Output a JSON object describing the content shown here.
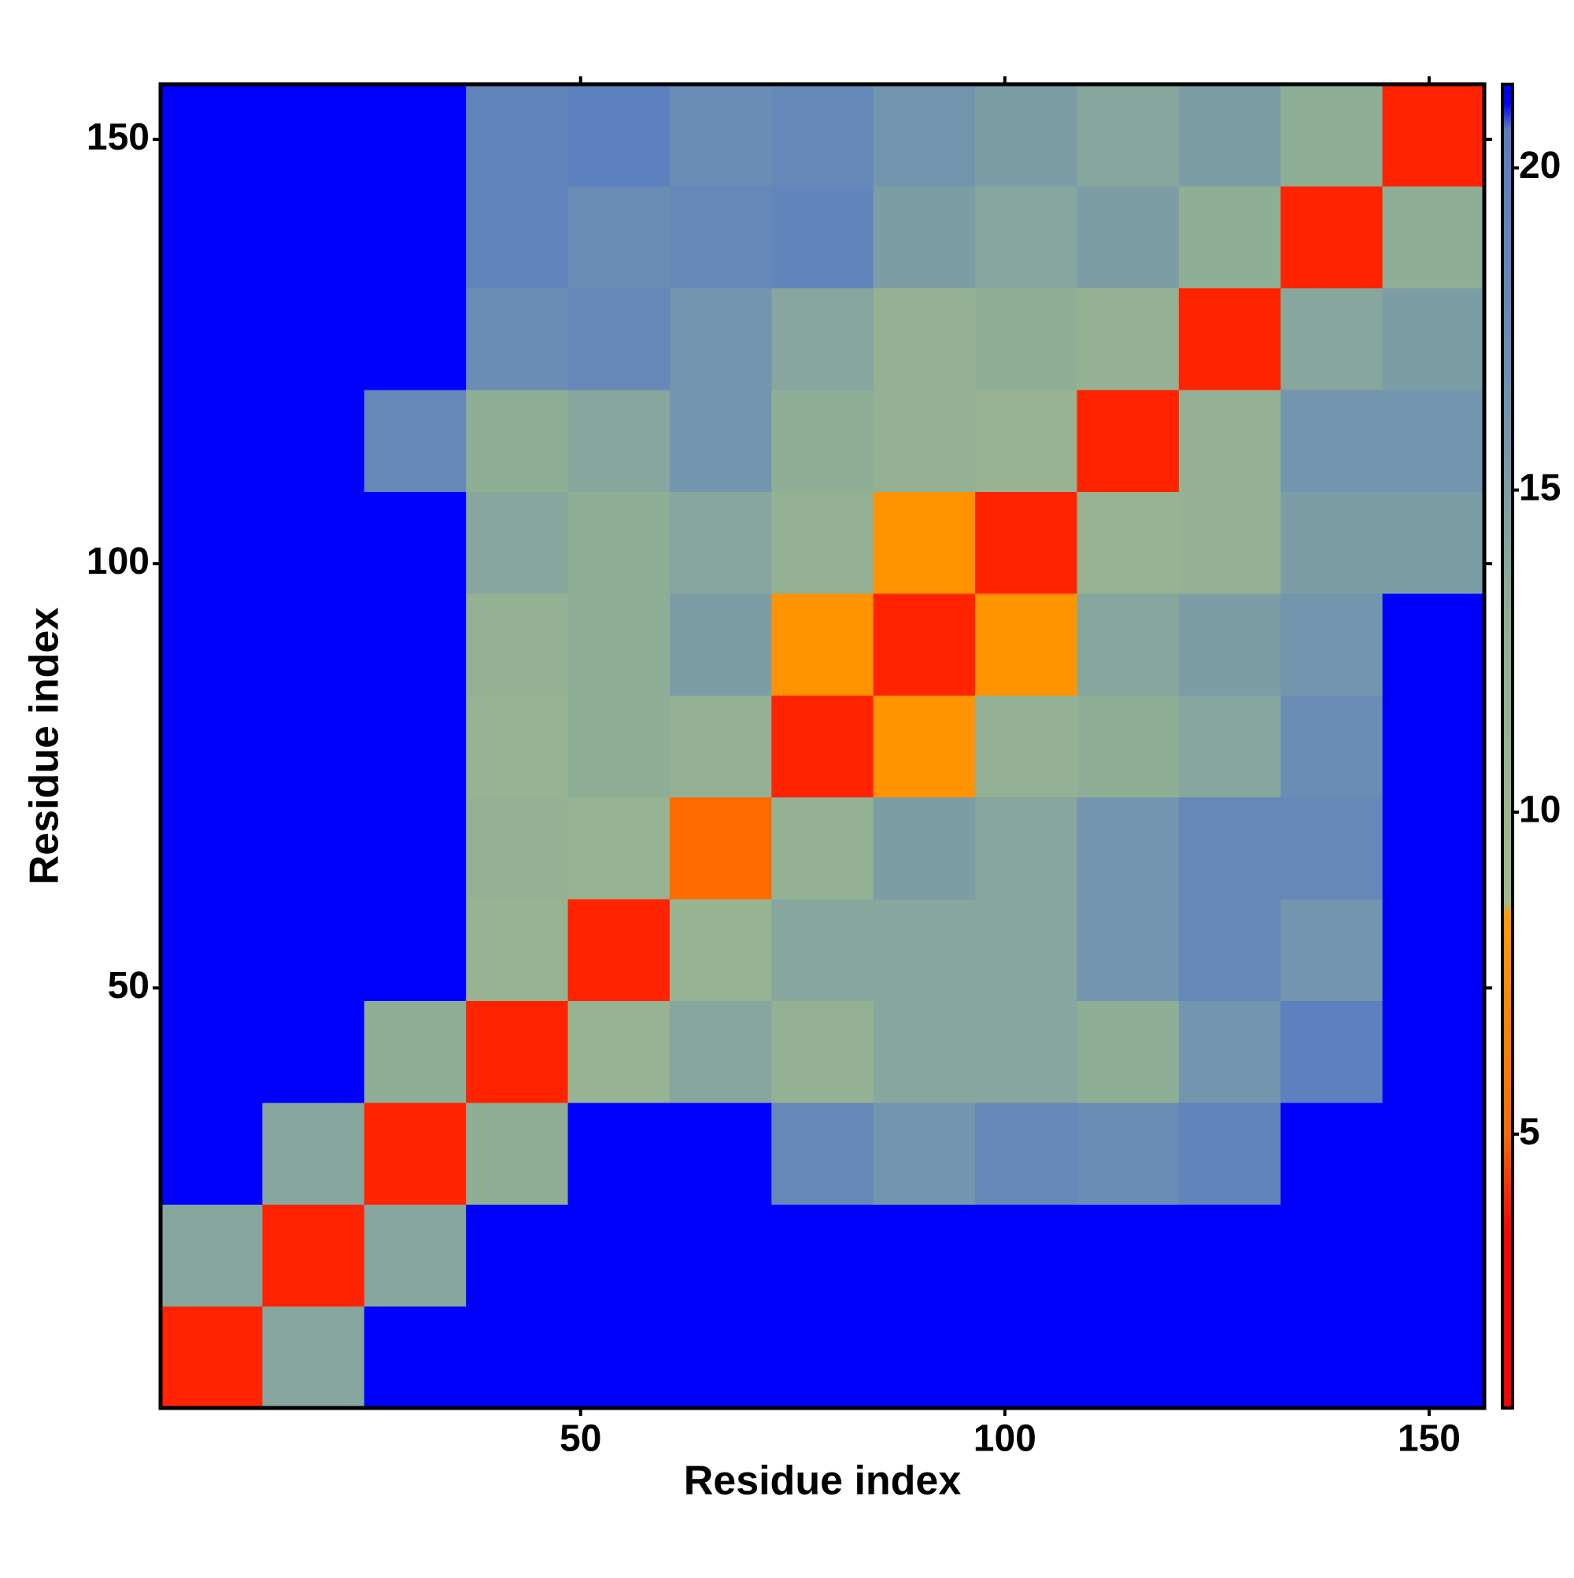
{
  "chart_data": {
    "type": "heatmap",
    "xlabel": "Residue index",
    "ylabel": "Residue index",
    "xlim": [
      0.5,
      156.5
    ],
    "ylim": [
      0.5,
      156.5
    ],
    "xticks": [
      50,
      100,
      150
    ],
    "yticks": [
      50,
      100,
      150
    ],
    "x": [
      6.5,
      18.5,
      30.5,
      42.5,
      54.5,
      66.5,
      78.5,
      90.5,
      102.5,
      114.5,
      126.5,
      138.5,
      150.5
    ],
    "y": [
      6.5,
      18.5,
      30.5,
      42.5,
      54.5,
      66.5,
      78.5,
      90.5,
      102.5,
      114.5,
      126.5,
      138.5,
      150.5
    ],
    "z": [
      [
        4,
        14,
        21,
        21,
        21,
        21,
        21,
        21,
        21,
        21,
        21,
        21,
        21
      ],
      [
        14,
        4,
        14,
        21,
        21,
        21,
        21,
        21,
        21,
        21,
        21,
        21,
        21
      ],
      [
        21,
        14,
        4,
        13,
        21,
        21,
        18,
        16,
        18,
        17,
        19,
        21,
        21
      ],
      [
        21,
        21,
        13,
        4,
        11,
        14,
        12,
        14,
        14,
        13,
        16,
        20,
        21
      ],
      [
        21,
        21,
        21,
        11,
        4,
        11,
        14,
        14,
        14,
        16,
        18,
        16,
        21
      ],
      [
        21,
        21,
        21,
        12,
        11,
        5,
        12,
        15,
        14,
        16,
        18,
        18,
        21
      ],
      [
        21,
        21,
        21,
        11,
        13,
        12,
        4,
        8,
        12,
        13,
        14,
        17,
        21
      ],
      [
        21,
        21,
        21,
        12,
        13,
        15,
        8,
        4,
        8,
        14,
        15,
        16,
        21
      ],
      [
        21,
        21,
        21,
        14,
        13,
        14,
        12,
        8,
        4,
        11,
        12,
        15,
        15
      ],
      [
        21,
        21,
        18,
        13,
        14,
        16,
        13,
        12,
        11,
        4,
        12,
        16,
        16
      ],
      [
        21,
        21,
        21,
        17,
        18,
        16,
        14,
        12,
        13,
        12,
        4,
        14,
        15
      ],
      [
        21,
        21,
        21,
        19,
        17,
        18,
        19,
        15,
        14,
        15,
        13,
        4,
        13
      ],
      [
        21,
        21,
        21,
        19,
        20,
        17,
        18,
        16,
        15,
        14,
        15,
        13,
        4
      ]
    ],
    "clim": [
      0.75,
      21.3
    ],
    "cticks": [
      5,
      10,
      15,
      20
    ],
    "colorscale": [
      {
        "value": 0.75,
        "color": "#ff0000"
      },
      {
        "value": 3.5,
        "color": "#ff0000"
      },
      {
        "value": 5,
        "color": "#ff6a00"
      },
      {
        "value": 8.4,
        "color": "#ff9900"
      },
      {
        "value": 8.6,
        "color": "#a3b98b"
      },
      {
        "value": 13,
        "color": "#8fae96"
      },
      {
        "value": 17,
        "color": "#6a8cb5"
      },
      {
        "value": 20.6,
        "color": "#5a7dc0"
      },
      {
        "value": 21,
        "color": "#0000ff"
      },
      {
        "value": 21.3,
        "color": "#0000ff"
      }
    ]
  }
}
